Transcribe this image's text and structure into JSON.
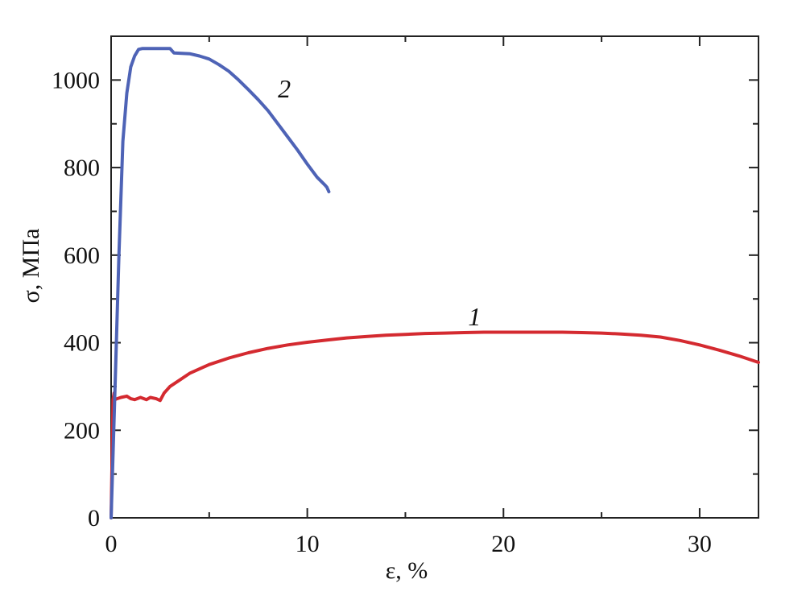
{
  "chart_data": {
    "type": "line",
    "xlabel": "ε, %",
    "ylabel": "σ, МПа",
    "xlim": [
      0,
      33
    ],
    "ylim": [
      0,
      1100
    ],
    "xticks": [
      0,
      10,
      20,
      30
    ],
    "yticks": [
      0,
      200,
      400,
      600,
      800,
      1000
    ],
    "grid": false,
    "legend": "none",
    "series": [
      {
        "name": "1",
        "color": "#d42a30",
        "x": [
          0.0,
          0.1,
          0.15,
          0.2,
          0.3,
          0.5,
          0.8,
          1.0,
          1.2,
          1.5,
          1.8,
          2.0,
          2.3,
          2.5,
          2.7,
          3.0,
          3.5,
          4.0,
          5.0,
          6.0,
          7.0,
          8.0,
          9.0,
          10.0,
          11.0,
          12.0,
          13.0,
          14.0,
          15.0,
          16.0,
          17.0,
          18.0,
          19.0,
          20.0,
          21.0,
          22.0,
          23.0,
          24.0,
          25.0,
          26.0,
          27.0,
          28.0,
          29.0,
          30.0,
          31.0,
          32.0,
          33.0
        ],
        "y": [
          0,
          270,
          285,
          270,
          272,
          275,
          278,
          272,
          270,
          275,
          270,
          275,
          272,
          268,
          285,
          300,
          315,
          330,
          350,
          365,
          377,
          387,
          395,
          401,
          406,
          411,
          414,
          417,
          419,
          421,
          422,
          423,
          424,
          424,
          424,
          424,
          424,
          423,
          422,
          420,
          417,
          413,
          405,
          395,
          383,
          370,
          355
        ],
        "label": "1",
        "label_at": [
          18.2,
          440
        ]
      },
      {
        "name": "2",
        "color": "#4e63b6",
        "x": [
          0.0,
          0.2,
          0.4,
          0.6,
          0.8,
          1.0,
          1.2,
          1.4,
          1.6,
          2.0,
          2.5,
          3.0,
          3.2,
          4.0,
          4.5,
          5.0,
          5.5,
          6.0,
          6.5,
          7.0,
          7.5,
          8.0,
          8.5,
          9.0,
          9.5,
          10.0,
          10.5,
          10.9,
          11.0,
          11.1
        ],
        "y": [
          0,
          300,
          600,
          860,
          970,
          1030,
          1055,
          1070,
          1072,
          1072,
          1072,
          1072,
          1062,
          1060,
          1055,
          1048,
          1035,
          1020,
          1000,
          978,
          955,
          930,
          900,
          870,
          840,
          808,
          778,
          760,
          755,
          745
        ],
        "label": "2",
        "label_at": [
          8.5,
          960
        ]
      }
    ]
  }
}
